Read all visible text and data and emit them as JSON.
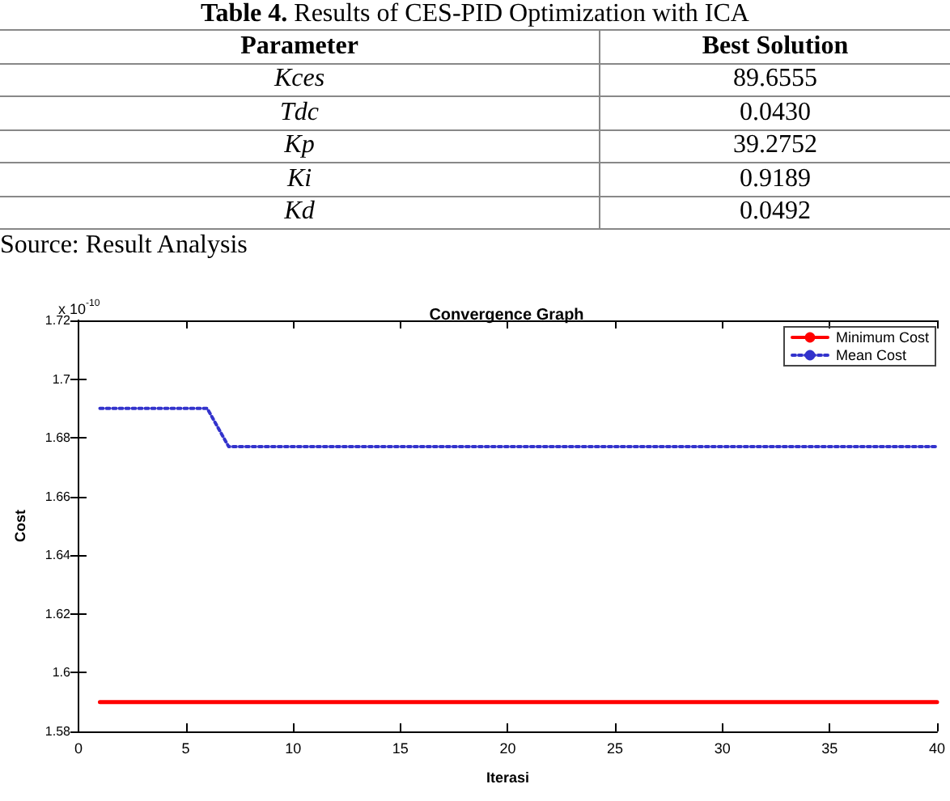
{
  "chart_data": [
    {
      "type": "other",
      "title": "Table 4. Results of CES-PID Optimization with ICA",
      "annotations": [
        "Parameter",
        "Best Solution",
        "Kces",
        "89.6555",
        "Tdc",
        "0.0430",
        "Kp",
        "39.2752",
        "Ki",
        "0.9189",
        "Kd",
        "0.0492",
        "Source: Result Analysis"
      ]
    },
    {
      "type": "line",
      "title": "Convergence Graph",
      "xlabel": "Iterasi",
      "ylabel": "Cost",
      "annotations": [
        "x 10$^{-10}$"
      ],
      "xlim": [
        0,
        40
      ],
      "xticks": [
        0,
        5,
        10,
        15,
        20,
        25,
        30,
        35,
        40
      ],
      "ylim": [
        1.58,
        1.72
      ],
      "yticks": [
        1.58,
        1.6,
        1.62,
        1.64,
        1.66,
        1.68,
        1.7,
        1.72
      ],
      "grid": false,
      "legend": "top right",
      "series": [
        {
          "name": "Minimum Cost",
          "color": "#ff0000",
          "x": [
            1,
            40
          ],
          "values": [
            1.59,
            1.59
          ],
          "line_style": "solid"
        },
        {
          "name": "Mean Cost",
          "color": "#3333cc",
          "x": [
            1,
            6,
            7,
            40
          ],
          "values": [
            1.69,
            1.69,
            1.677,
            1.677
          ],
          "line_style": "dotted"
        }
      ]
    }
  ]
}
